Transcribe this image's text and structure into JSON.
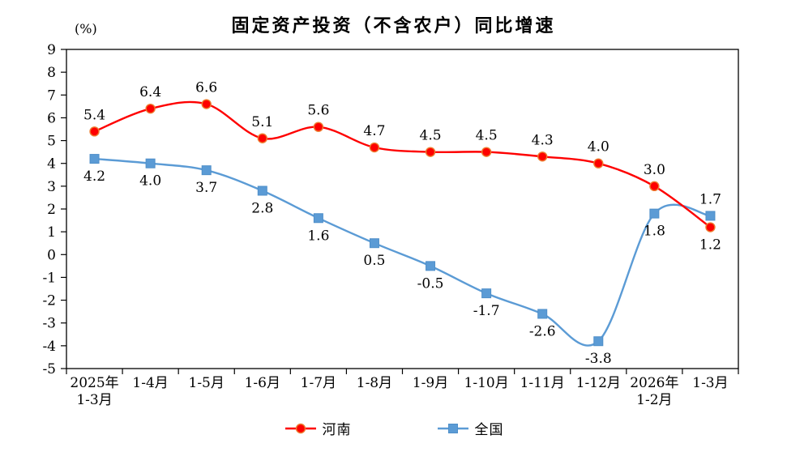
{
  "header": {
    "title": "固定资产投资（不含农户）同比增速",
    "unit_label": "(%)"
  },
  "chart_data": {
    "type": "line",
    "title": "固定资产投资（不含农户）同比增速",
    "ylabel": "(%)",
    "ylim": [
      -5,
      9
    ],
    "ytick_interval": 1,
    "grid": false,
    "legend_position": "bottom",
    "line_shape": "smooth",
    "categories": [
      "2025年\n1-3月",
      "1-4月",
      "1-5月",
      "1-6月",
      "1-7月",
      "1-8月",
      "1-9月",
      "1-10月",
      "1-11月",
      "1-12月",
      "2026年\n1-2月",
      "1-3月"
    ],
    "series": [
      {
        "name": "河南",
        "color": "#fe0000",
        "marker": "circle",
        "marker_edge_color": "#ed7d31",
        "values": [
          5.4,
          6.4,
          6.6,
          5.1,
          5.6,
          4.7,
          4.5,
          4.5,
          4.3,
          4.0,
          3.0,
          1.2
        ],
        "label_sides": [
          "above",
          "above",
          "above",
          "above",
          "above",
          "above",
          "above",
          "above",
          "above",
          "above",
          "above",
          "below"
        ]
      },
      {
        "name": "全国",
        "color": "#5b9bd5",
        "marker": "square",
        "marker_edge_color": "#4f8fc9",
        "values": [
          4.2,
          4.0,
          3.7,
          2.8,
          1.6,
          0.5,
          -0.5,
          -1.7,
          -2.6,
          -3.8,
          1.8,
          1.7
        ],
        "label_sides": [
          "below",
          "below",
          "below",
          "below",
          "below",
          "below",
          "below",
          "below",
          "below",
          "below",
          "below",
          "above"
        ]
      }
    ]
  }
}
